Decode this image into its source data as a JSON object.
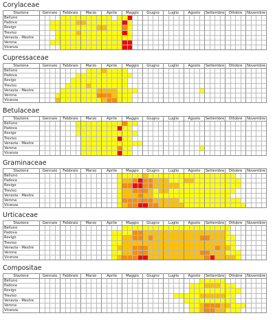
{
  "header_station": "Stazione",
  "months": [
    "Gennaio",
    "Febbraio",
    "Marzo",
    "Aprile",
    "Maggio",
    "Giugno",
    "Luglio",
    "Agosto",
    "Settembre",
    "Ottobre",
    "Novembre"
  ],
  "legend_colors": {
    "0": "#ffffff",
    "1": "#ffff00",
    "2": "#ffc000",
    "3": "#ff8c00",
    "4": "#ff0000"
  },
  "chart_data": [
    {
      "type": "heatmap",
      "title": "Corylaceae",
      "rows": [
        "Belluno",
        "Padova",
        "Rovigo",
        "Treviso",
        "Venezia - Mestre",
        "Verona",
        "Vicenza"
      ],
      "values": [
        "00001111111111011400000000000000000000000000",
        "00111112211111114100000000000000000000000000",
        "00111111111221113100000000000000000000000000",
        "00011112111111114100000000000000000000000000",
        "00011111111111111100000000000000000000000000",
        "00111111111111114400000000000000000000000000",
        "00001111111111114400000000000000000000000000"
      ]
    },
    {
      "type": "heatmap",
      "title": "Cupressaceae",
      "rows": [
        "Belluno",
        "Padova",
        "Rovigo",
        "Treviso",
        "Venezia - Mestre",
        "Verona",
        "Vicenza"
      ],
      "values": [
        "00000000011121111000000000000000000000000000",
        "00000001111111111100000000000000000000000000",
        "00000011111111111000000000000000000000000000",
        "00000111121111111000000000000000000000000000",
        "00001111111222211110000000000001000000000000",
        "00011111111333211100000000000000000000000000",
        "00021111111123311100000000000000000000000000"
      ]
    },
    {
      "type": "heatmap",
      "title": "Betulaceae",
      "rows": [
        "Belluno",
        "Padova",
        "Rovigo",
        "Treviso",
        "Venezia - Mestre",
        "Verona",
        "Vicenza"
      ],
      "values": [
        "00000001111111113110000000000000000000000000",
        "00000001111111141100000000000000000000000000",
        "00000001111111111110000000000000000000000000",
        "00000000111111141100000000000000000000000000",
        "00000000111111111111000000000000000000000000",
        "00000000111111131100000000000001000000000000",
        "00000000111111141100000000000000000000000000"
      ]
    },
    {
      "type": "heatmap",
      "title": "Graminaceae",
      "rows": [
        "Belluno",
        "Padova",
        "Rovigo",
        "Treviso",
        "Venezia - Mestre",
        "Verona",
        "Vicenza"
      ],
      "values": [
        "00000000000000011111211111111111111111000000",
        "00000000000000012234332221112211111111100000",
        "00000000000000013344332222211111111111100000",
        "00000000000000012233321221111111111111000000",
        "00000000000000012223221111111111111110000000",
        "00000000000000013333332222211111111111100000",
        "00000000000000012334433222221111111111110000"
      ]
    },
    {
      "type": "heatmap",
      "title": "Urticaceae",
      "rows": [
        "Belluno",
        "Padova",
        "Rovigo",
        "Treviso",
        "Venezia - Mestre",
        "Verona",
        "Vicenza"
      ],
      "values": [
        "00000000000000001111111111111111111110000000",
        "00000000000000111133222222222222222210000000",
        "00000000000000112233232222222223322211000000",
        "00000000000000112222222222222222222211000000",
        "00000000000000122233322222222222223221000000",
        "00000000000000112233322222222223322211100000",
        "00000000000000123334422222222222342222100000"
      ]
    },
    {
      "type": "heatmap",
      "title": "Compositae",
      "rows": [
        "Belluno",
        "Padova",
        "Rovigo",
        "Treviso",
        "Venezia - Mestre",
        "Verona",
        "Vicenza"
      ],
      "values": [
        "00000000000000000000000000000001111100000000",
        "00000000000000000000000000000111222111000000",
        "00000000000000000000000000000111111111100000",
        "00000000000000000000000000111112222211000000",
        "00000000000000000000000000001111111111000000",
        "00000000000000000000000000000112333221110000",
        "00000000000000000000000000000112332211100000"
      ]
    }
  ]
}
